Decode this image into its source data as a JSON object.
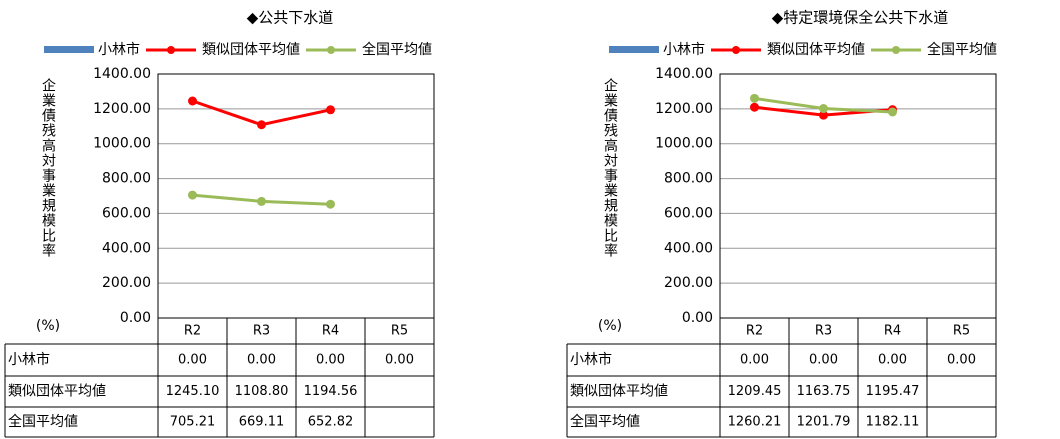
{
  "chart_data": [
    {
      "type": "line",
      "title": "◆公共下水道",
      "ylabel": "企業債残高対事業規模比率",
      "yunit": "(%)",
      "categories": [
        "R2",
        "R3",
        "R4",
        "R5"
      ],
      "ylim": [
        0,
        1400
      ],
      "yticks": [
        {
          "value": 0,
          "label": "0.00"
        },
        {
          "value": 200,
          "label": "200.00"
        },
        {
          "value": 400,
          "label": "400.00"
        },
        {
          "value": 600,
          "label": "600.00"
        },
        {
          "value": 800,
          "label": "800.00"
        },
        {
          "value": 1000,
          "label": "1000.00"
        },
        {
          "value": 1200,
          "label": "1200.00"
        },
        {
          "value": 1400,
          "label": "1400.00"
        }
      ],
      "grid": true,
      "series": [
        {
          "name": "小林市",
          "type": "bar",
          "color": "#4f81bd",
          "values": [
            0,
            0,
            0,
            0
          ],
          "value_labels": [
            "0.00",
            "0.00",
            "0.00",
            "0.00"
          ]
        },
        {
          "name": "類似団体平均値",
          "type": "line",
          "color": "#ff0000",
          "values": [
            1245.1,
            1108.8,
            1194.56,
            null
          ],
          "value_labels": [
            "1245.10",
            "1108.80",
            "1194.56",
            null
          ]
        },
        {
          "name": "全国平均値",
          "type": "line",
          "color": "#9bbb59",
          "values": [
            705.21,
            669.11,
            652.82,
            null
          ],
          "value_labels": [
            "705.21",
            "669.11",
            "652.82",
            null
          ]
        }
      ]
    },
    {
      "type": "line",
      "title": "◆特定環境保全公共下水道",
      "ylabel": "企業債残高対事業規模比率",
      "yunit": "(%)",
      "categories": [
        "R2",
        "R3",
        "R4",
        "R5"
      ],
      "ylim": [
        0,
        1400
      ],
      "yticks": [
        {
          "value": 0,
          "label": "0.00"
        },
        {
          "value": 200,
          "label": "200.00"
        },
        {
          "value": 400,
          "label": "400.00"
        },
        {
          "value": 600,
          "label": "600.00"
        },
        {
          "value": 800,
          "label": "800.00"
        },
        {
          "value": 1000,
          "label": "1000.00"
        },
        {
          "value": 1200,
          "label": "1200.00"
        },
        {
          "value": 1400,
          "label": "1400.00"
        }
      ],
      "grid": true,
      "series": [
        {
          "name": "小林市",
          "type": "bar",
          "color": "#4f81bd",
          "values": [
            0,
            0,
            0,
            0
          ],
          "value_labels": [
            "0.00",
            "0.00",
            "0.00",
            "0.00"
          ]
        },
        {
          "name": "類似団体平均値",
          "type": "line",
          "color": "#ff0000",
          "values": [
            1209.45,
            1163.75,
            1195.47,
            null
          ],
          "value_labels": [
            "1209.45",
            "1163.75",
            "1195.47",
            null
          ]
        },
        {
          "name": "全国平均値",
          "type": "line",
          "color": "#9bbb59",
          "values": [
            1260.21,
            1201.79,
            1182.11,
            null
          ],
          "value_labels": [
            "1260.21",
            "1201.79",
            "1182.11",
            null
          ]
        }
      ]
    }
  ]
}
